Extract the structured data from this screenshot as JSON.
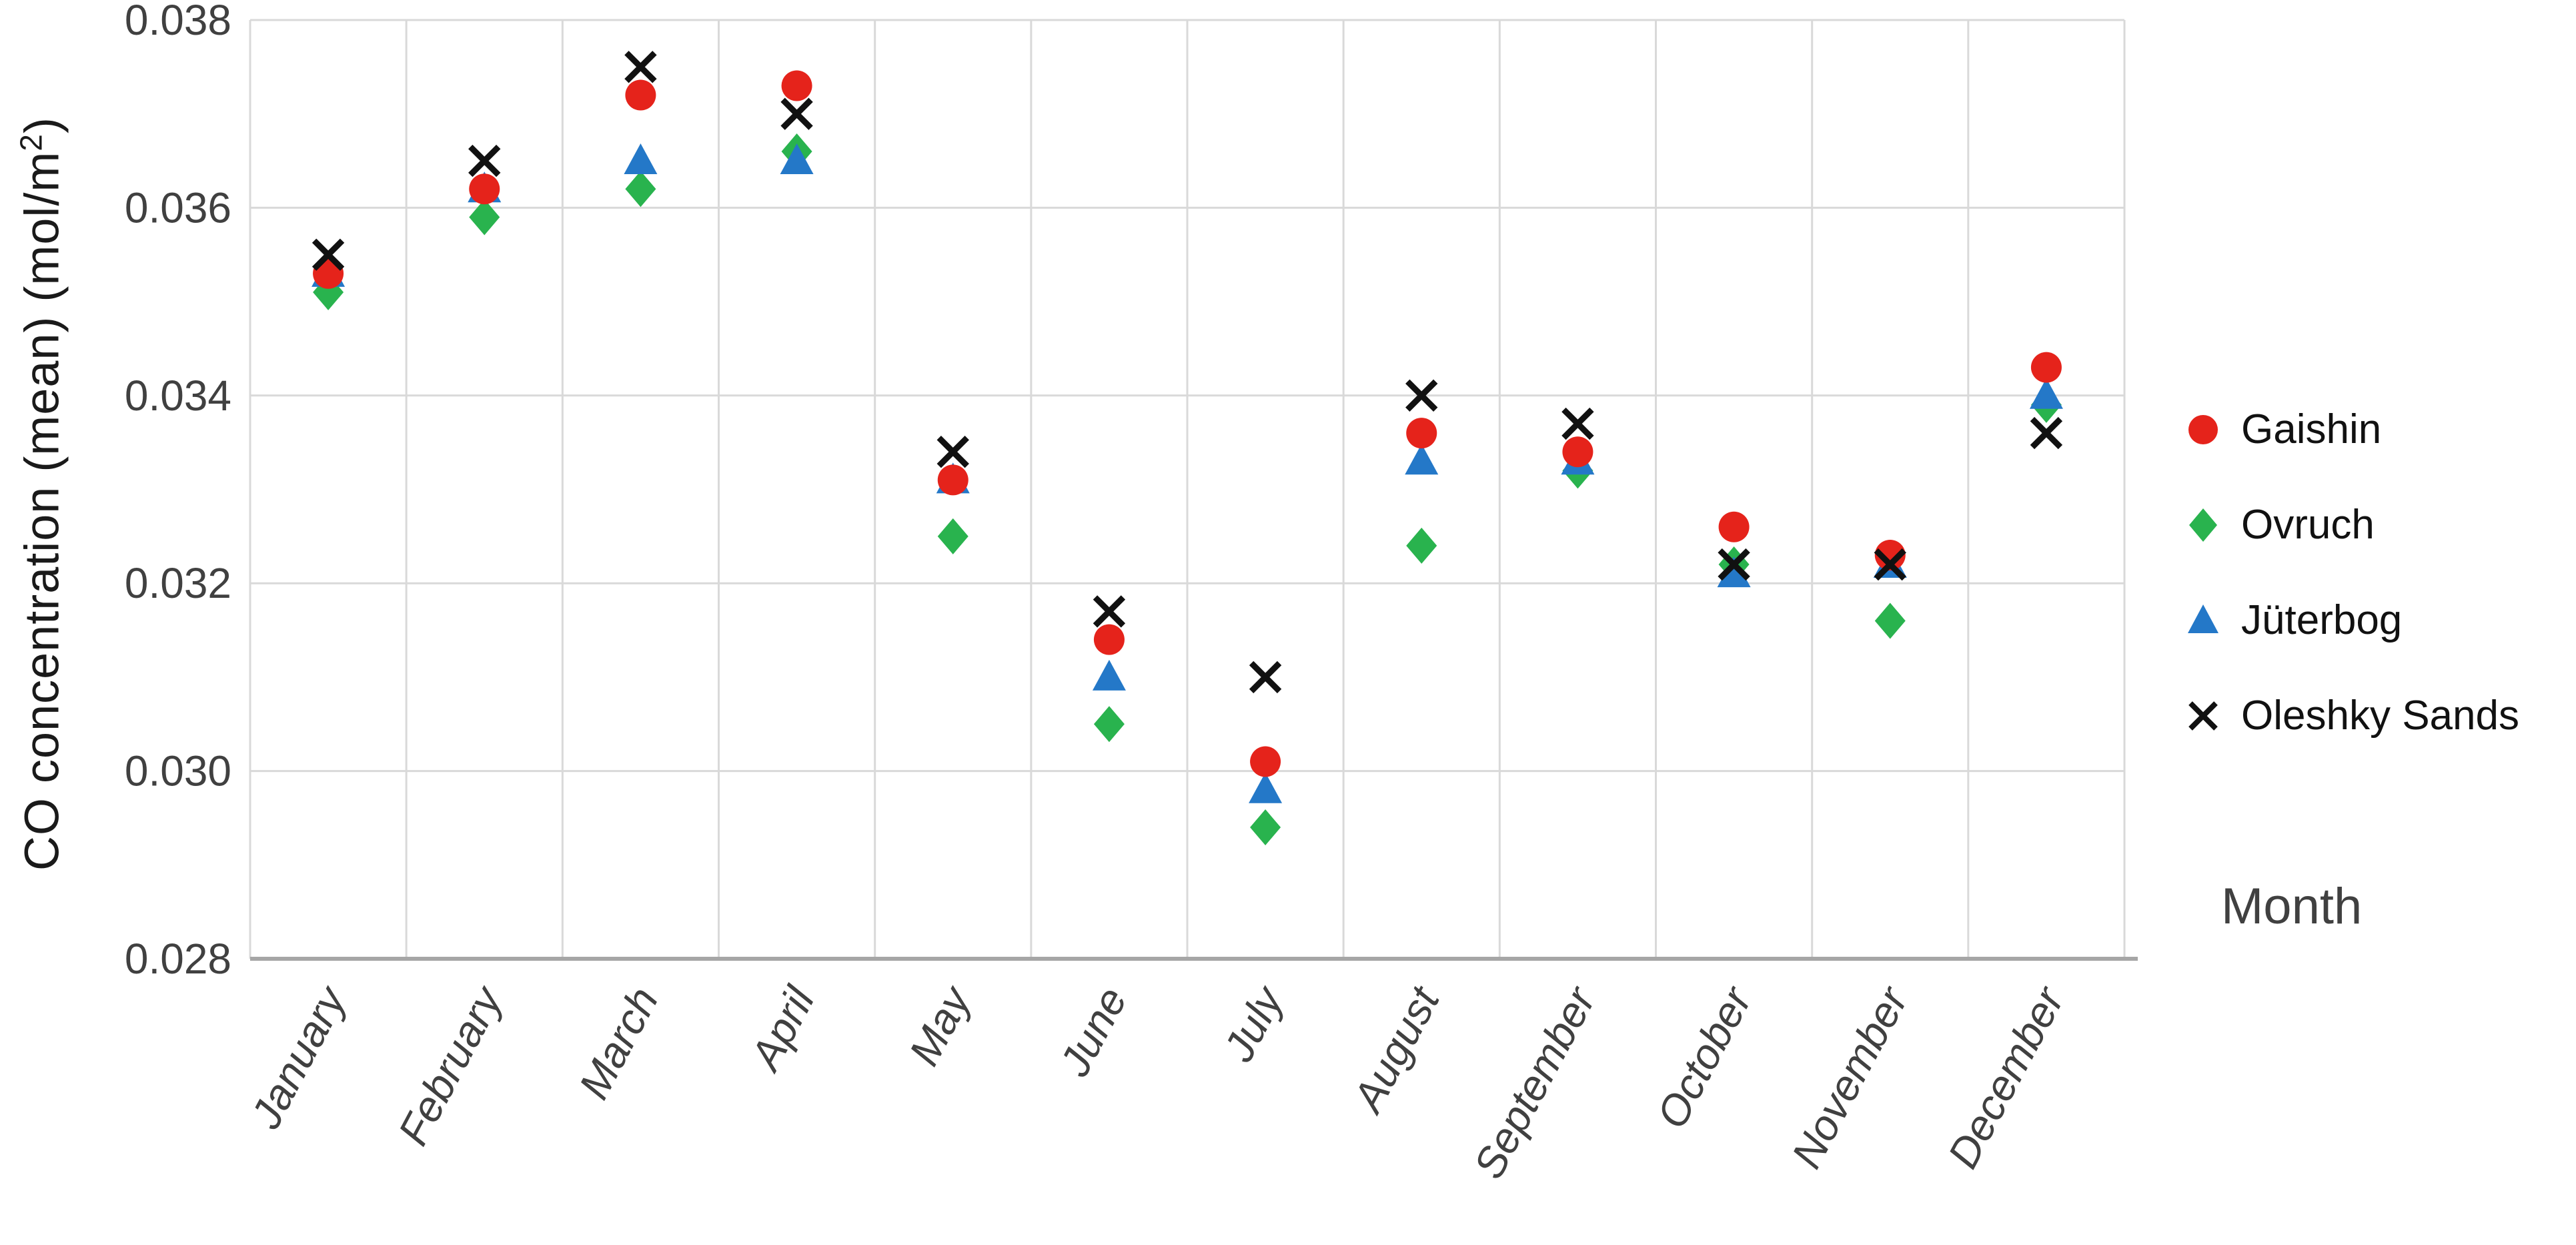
{
  "figure": {
    "ylabel_prefix": "CO concentration (mean) (mol/m",
    "ylabel_sup": "2",
    "ylabel_suffix": ")",
    "xlabel": "Month"
  },
  "chart_data": {
    "type": "scatter",
    "title": "",
    "xlabel": "Month",
    "ylabel": "CO concentration (mean) (mol/m2)",
    "categories": [
      "January",
      "February",
      "March",
      "April",
      "May",
      "June",
      "July",
      "August",
      "September",
      "October",
      "November",
      "December"
    ],
    "ylim": [
      0.028,
      0.038
    ],
    "yticks": [
      0.028,
      0.03,
      0.032,
      0.034,
      0.036,
      0.038
    ],
    "ytick_labels": [
      "0.028",
      "0.030",
      "0.032",
      "0.034",
      "0.036",
      "0.038"
    ],
    "grid": true,
    "legend_position": "right",
    "colors": {
      "gridline": "#d9d9d9",
      "axis": "#a6a6a6",
      "tick_text": "#404040"
    },
    "series": [
      {
        "name": "Gaishin",
        "marker": "circle",
        "color": "#e5231b",
        "values": [
          0.0353,
          0.0362,
          0.0372,
          0.0373,
          0.0331,
          0.0314,
          0.0301,
          0.0336,
          0.0334,
          0.0326,
          0.0323,
          0.0343
        ]
      },
      {
        "name": "Ovruch",
        "marker": "diamond",
        "color": "#29b34e",
        "values": [
          0.0351,
          0.0359,
          0.0362,
          0.0366,
          0.0325,
          0.0305,
          0.0294,
          0.0324,
          0.0332,
          0.0322,
          0.0316,
          0.0339
        ]
      },
      {
        "name": "Jüterbog",
        "marker": "triangle",
        "color": "#2478c8",
        "values": [
          0.0353,
          0.0362,
          0.0365,
          0.0365,
          0.0331,
          0.031,
          0.0298,
          0.0333,
          0.0333,
          0.0321,
          0.0322,
          0.034
        ]
      },
      {
        "name": "Oleshky Sands",
        "marker": "x",
        "color": "#111111",
        "values": [
          0.0355,
          0.0365,
          0.0375,
          0.037,
          0.0334,
          0.0317,
          0.031,
          0.034,
          0.0337,
          0.0322,
          0.0322,
          0.0336
        ]
      }
    ]
  }
}
